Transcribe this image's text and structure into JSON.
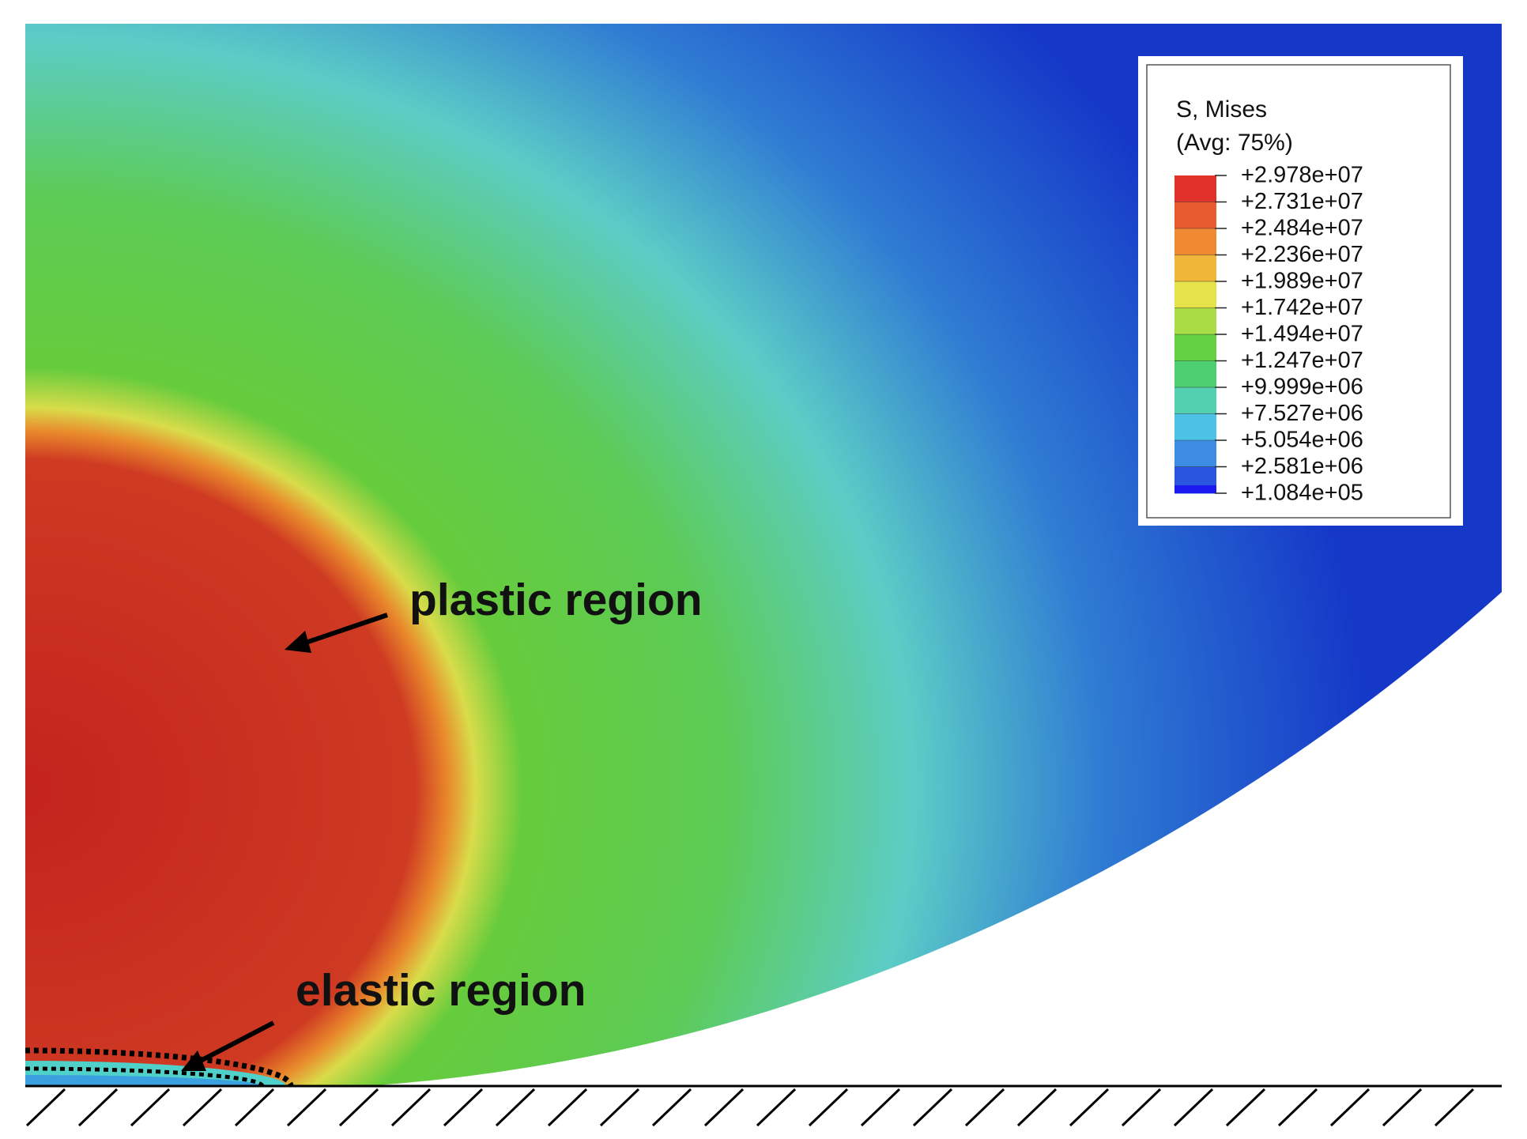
{
  "legend": {
    "title": "S, Mises",
    "subtitle": "(Avg: 75%)",
    "labels": [
      "+2.978e+07",
      "+2.731e+07",
      "+2.484e+07",
      "+2.236e+07",
      "+1.989e+07",
      "+1.742e+07",
      "+1.494e+07",
      "+1.247e+07",
      "+9.999e+06",
      "+7.527e+06",
      "+5.054e+06",
      "+2.581e+06",
      "+1.084e+05"
    ]
  },
  "annotations": {
    "plastic": "plastic region",
    "elastic": "elastic region"
  }
}
